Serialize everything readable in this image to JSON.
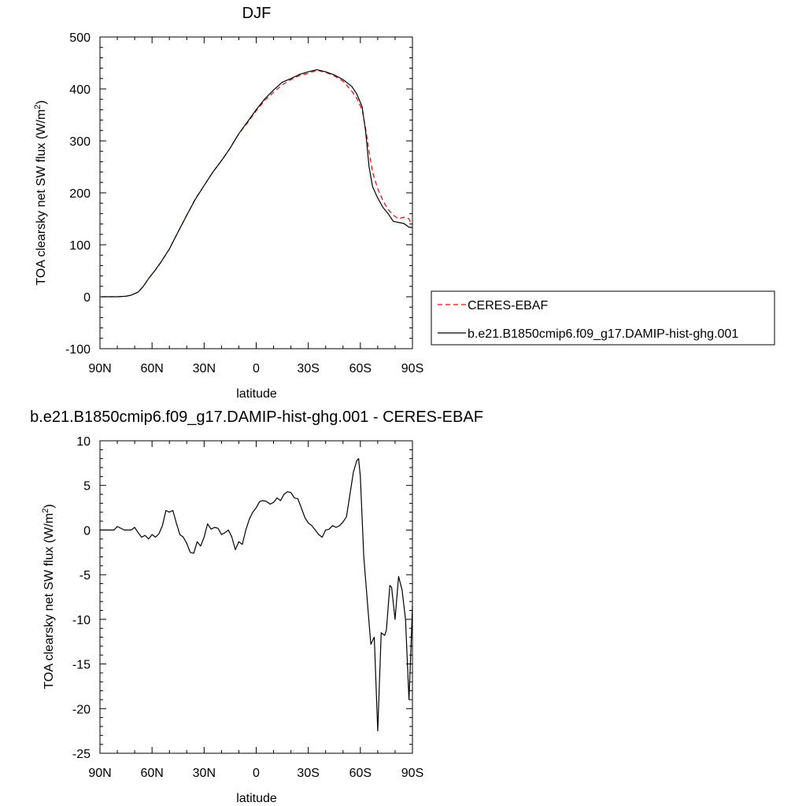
{
  "chart_data": [
    {
      "type": "line",
      "title": "DJF",
      "xlabel": "latitude",
      "ylabel": "TOA clearsky net SW flux (W/m",
      "ylabel_sup": "2",
      "ylabel_close": ")",
      "xlim": [
        -90,
        90
      ],
      "ylim": [
        -100,
        500
      ],
      "x_ticks": [
        -90,
        -60,
        -30,
        0,
        30,
        60,
        90
      ],
      "x_tick_labels": [
        "90N",
        "60N",
        "30N",
        "0",
        "30S",
        "60S",
        "90S"
      ],
      "y_ticks": [
        -100,
        0,
        100,
        200,
        300,
        400,
        500
      ],
      "y_tick_labels": [
        "-100",
        "0",
        "100",
        "200",
        "300",
        "400",
        "500"
      ],
      "legend_position": "right",
      "series": [
        {
          "name": "CERES-EBAF",
          "color": "#ff0000",
          "dash": "dashed",
          "points": [
            [
              -89,
              0
            ],
            [
              -80,
              0
            ],
            [
              -75,
              1
            ],
            [
              -72,
              3
            ],
            [
              -68,
              9
            ],
            [
              -65,
              20
            ],
            [
              -62,
              35
            ],
            [
              -58,
              52
            ],
            [
              -55,
              66
            ],
            [
              -50,
              92
            ],
            [
              -45,
              125
            ],
            [
              -40,
              157
            ],
            [
              -35,
              189
            ],
            [
              -30,
              214
            ],
            [
              -25,
              240
            ],
            [
              -20,
              262
            ],
            [
              -15,
              286
            ],
            [
              -10,
              314
            ],
            [
              -5,
              335
            ],
            [
              0,
              358
            ],
            [
              5,
              378
            ],
            [
              10,
              394
            ],
            [
              15,
              408
            ],
            [
              20,
              418
            ],
            [
              25,
              426
            ],
            [
              30,
              430
            ],
            [
              35,
              436
            ],
            [
              40,
              432
            ],
            [
              45,
              425
            ],
            [
              50,
              415
            ],
            [
              55,
              396
            ],
            [
              58,
              382
            ],
            [
              61,
              360
            ],
            [
              63,
              325
            ],
            [
              65,
              280
            ],
            [
              67,
              240
            ],
            [
              70,
              208
            ],
            [
              73,
              185
            ],
            [
              76,
              168
            ],
            [
              79,
              157
            ],
            [
              82,
              150
            ],
            [
              85,
              153
            ],
            [
              88,
              150
            ],
            [
              89,
              142
            ],
            [
              90,
              142
            ]
          ]
        },
        {
          "name": "b.e21.B1850cmip6.f09_g17.DAMIP-hist-ghg.001",
          "color": "#000000",
          "dash": "solid",
          "points": [
            [
              -89,
              0
            ],
            [
              -80,
              0
            ],
            [
              -75,
              1
            ],
            [
              -72,
              3
            ],
            [
              -68,
              9
            ],
            [
              -65,
              20
            ],
            [
              -62,
              35
            ],
            [
              -58,
              52
            ],
            [
              -55,
              66
            ],
            [
              -50,
              92
            ],
            [
              -45,
              125
            ],
            [
              -40,
              157
            ],
            [
              -35,
              188
            ],
            [
              -30,
              214
            ],
            [
              -25,
              240
            ],
            [
              -20,
              262
            ],
            [
              -15,
              286
            ],
            [
              -10,
              314
            ],
            [
              -5,
              337
            ],
            [
              0,
              360
            ],
            [
              5,
              381
            ],
            [
              10,
              398
            ],
            [
              15,
              413
            ],
            [
              20,
              420
            ],
            [
              25,
              428
            ],
            [
              30,
              433
            ],
            [
              35,
              437
            ],
            [
              40,
              433
            ],
            [
              45,
              427
            ],
            [
              50,
              418
            ],
            [
              55,
              405
            ],
            [
              58,
              390
            ],
            [
              61,
              366
            ],
            [
              63,
              320
            ],
            [
              65,
              250
            ],
            [
              67,
              212
            ],
            [
              70,
              190
            ],
            [
              73,
              172
            ],
            [
              76,
              160
            ],
            [
              79,
              145
            ],
            [
              82,
              143
            ],
            [
              85,
              141
            ],
            [
              88,
              134
            ],
            [
              90,
              133
            ]
          ]
        }
      ]
    },
    {
      "type": "line",
      "title": "b.e21.B1850cmip6.f09_g17.DAMIP-hist-ghg.001 - CERES-EBAF",
      "xlabel": "latitude",
      "ylabel": "TOA clearsky net SW flux (W/m",
      "ylabel_sup": "2",
      "ylabel_close": ")",
      "xlim": [
        -90,
        90
      ],
      "ylim": [
        -25,
        10
      ],
      "x_ticks": [
        -90,
        -60,
        -30,
        0,
        30,
        60,
        90
      ],
      "x_tick_labels": [
        "90N",
        "60N",
        "30N",
        "0",
        "30S",
        "60S",
        "90S"
      ],
      "y_ticks": [
        -25,
        -20,
        -15,
        -10,
        -5,
        0,
        5,
        10
      ],
      "y_tick_labels": [
        "-25",
        "-20",
        "-15",
        "-10",
        "-5",
        "0",
        "5",
        "10"
      ],
      "series": [
        {
          "color": "#000000",
          "dash": "solid",
          "points": [
            [
              -90,
              0
            ],
            [
              -82,
              0
            ],
            [
              -80,
              0.4
            ],
            [
              -76,
              0
            ],
            [
              -72,
              0
            ],
            [
              -70,
              0.3
            ],
            [
              -68,
              -0.3
            ],
            [
              -66,
              -0.8
            ],
            [
              -64,
              -0.6
            ],
            [
              -62,
              -1.0
            ],
            [
              -60,
              -0.5
            ],
            [
              -58,
              -0.8
            ],
            [
              -56,
              -0.4
            ],
            [
              -54,
              0.5
            ],
            [
              -52,
              2.2
            ],
            [
              -50,
              2.0
            ],
            [
              -48,
              2.2
            ],
            [
              -46,
              0.8
            ],
            [
              -44,
              -0.5
            ],
            [
              -42,
              -0.8
            ],
            [
              -40,
              -1.5
            ],
            [
              -38,
              -2.5
            ],
            [
              -36,
              -2.6
            ],
            [
              -34,
              -1.3
            ],
            [
              -32,
              -1.8
            ],
            [
              -30,
              -0.8
            ],
            [
              -28,
              0.7
            ],
            [
              -26,
              0.1
            ],
            [
              -24,
              0.3
            ],
            [
              -22,
              0.2
            ],
            [
              -20,
              -0.5
            ],
            [
              -18,
              -0.3
            ],
            [
              -16,
              0
            ],
            [
              -14,
              -0.8
            ],
            [
              -12,
              -2.2
            ],
            [
              -10,
              -1.3
            ],
            [
              -8,
              -1.6
            ],
            [
              -6,
              0
            ],
            [
              -4,
              1.2
            ],
            [
              -2,
              2.0
            ],
            [
              0,
              2.5
            ],
            [
              2,
              3.2
            ],
            [
              4,
              3.3
            ],
            [
              6,
              3.2
            ],
            [
              8,
              2.9
            ],
            [
              10,
              3.1
            ],
            [
              12,
              3.6
            ],
            [
              14,
              3.3
            ],
            [
              16,
              4.0
            ],
            [
              18,
              4.3
            ],
            [
              20,
              4.2
            ],
            [
              22,
              3.6
            ],
            [
              24,
              3.5
            ],
            [
              26,
              2.5
            ],
            [
              28,
              1.4
            ],
            [
              30,
              0.8
            ],
            [
              32,
              0.5
            ],
            [
              34,
              0
            ],
            [
              36,
              -0.5
            ],
            [
              38,
              -0.8
            ],
            [
              40,
              0
            ],
            [
              42,
              0.1
            ],
            [
              44,
              0.5
            ],
            [
              46,
              0.3
            ],
            [
              48,
              0.5
            ],
            [
              50,
              0.9
            ],
            [
              52,
              1.5
            ],
            [
              54,
              4.0
            ],
            [
              56,
              6.5
            ],
            [
              58,
              7.8
            ],
            [
              59,
              8.0
            ],
            [
              60,
              6.0
            ],
            [
              62,
              -3.0
            ],
            [
              64,
              -8.0
            ],
            [
              66,
              -12.8
            ],
            [
              68,
              -12.0
            ],
            [
              70,
              -22.5
            ],
            [
              72,
              -11.5
            ],
            [
              74,
              -11.8
            ],
            [
              75,
              -11.2
            ],
            [
              77,
              -6.2
            ],
            [
              78,
              -6.4
            ],
            [
              80,
              -10.0
            ],
            [
              82,
              -5.2
            ],
            [
              84,
              -6.7
            ],
            [
              86,
              -10.0
            ],
            [
              88,
              -19.0
            ],
            [
              89,
              -14.0
            ],
            [
              90,
              -8.5
            ]
          ]
        }
      ]
    }
  ]
}
